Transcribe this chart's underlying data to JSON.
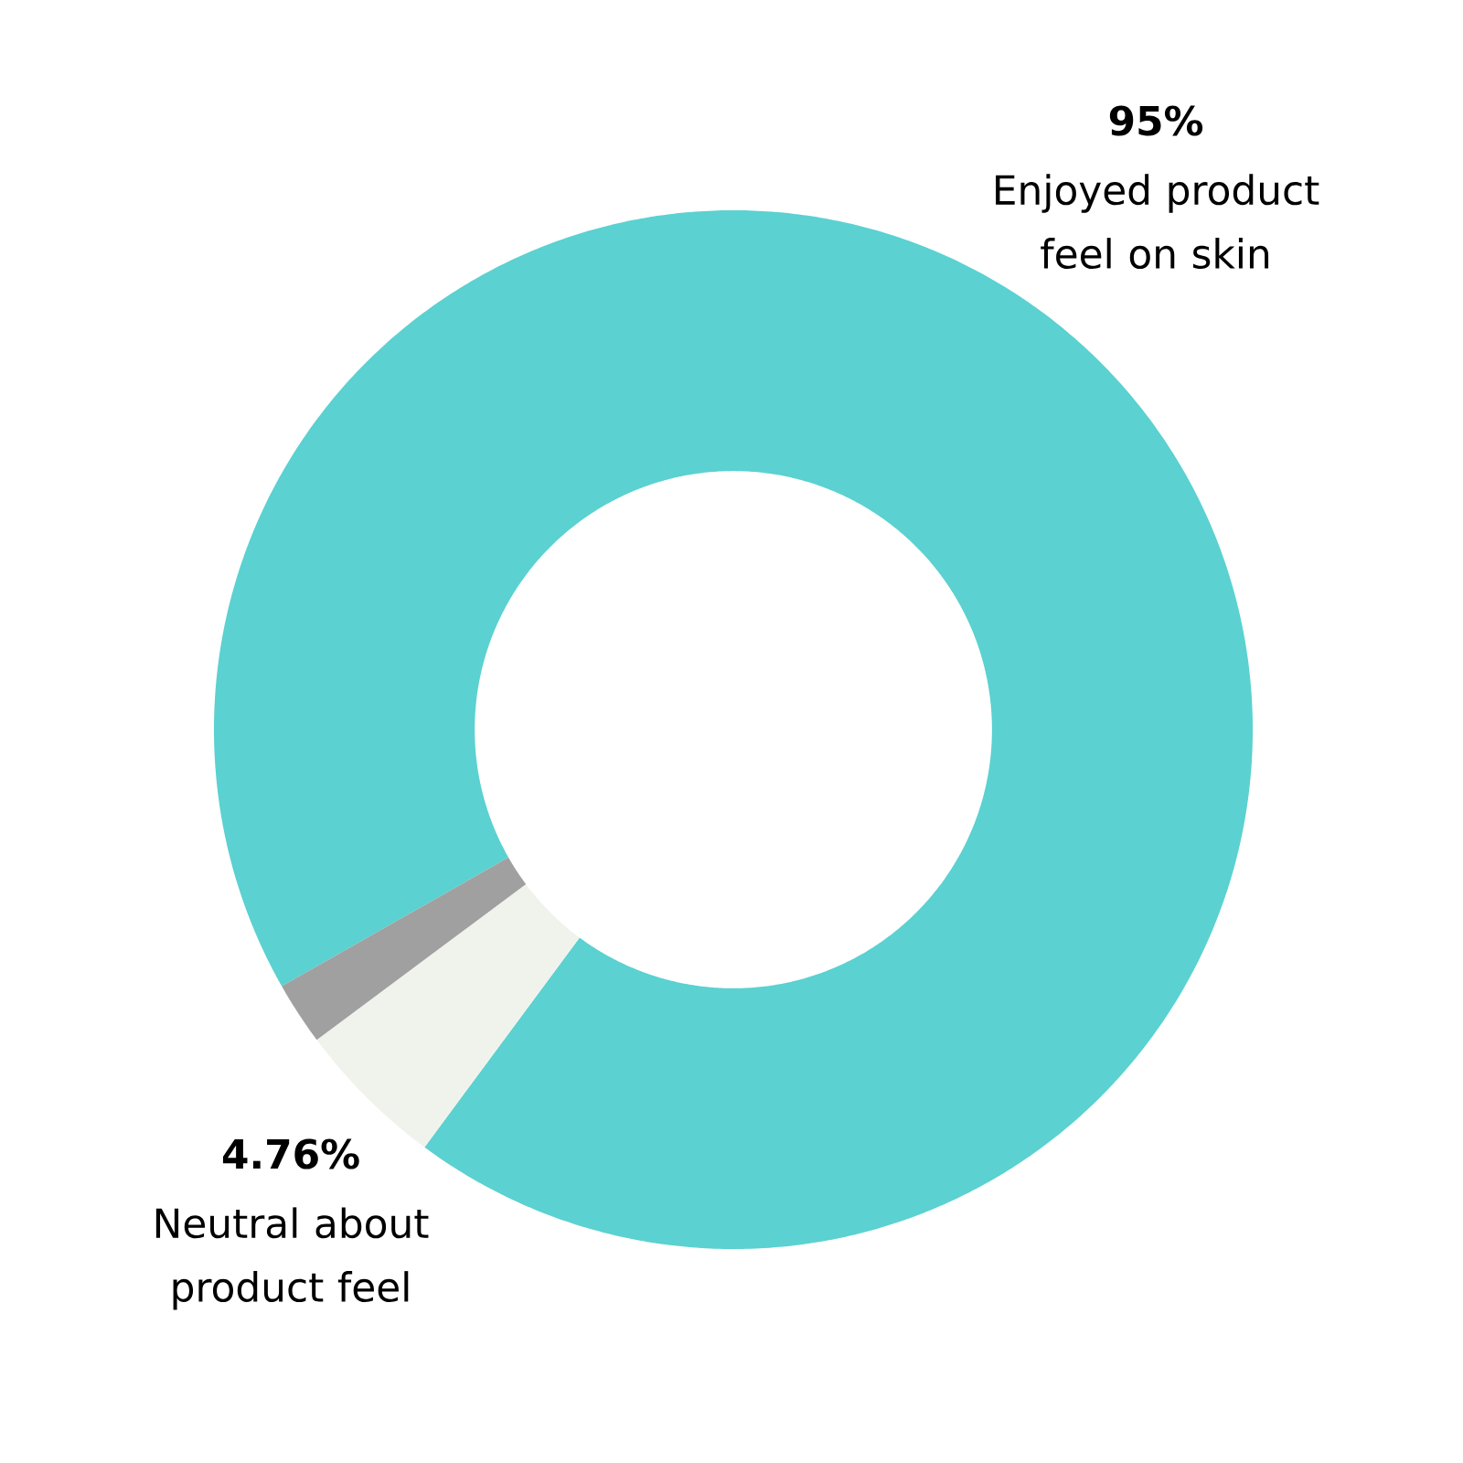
{
  "chart_data": {
    "type": "donut",
    "categories": [
      "Enjoyed product feel on skin",
      "Neutral about product feel",
      null
    ],
    "values": [
      95,
      4.76,
      2
    ],
    "colors": [
      "#5bd1d1",
      "#f0f3ec",
      "#a0a0a0"
    ],
    "value_labels": [
      "95%",
      "4.76%",
      null
    ]
  }
}
